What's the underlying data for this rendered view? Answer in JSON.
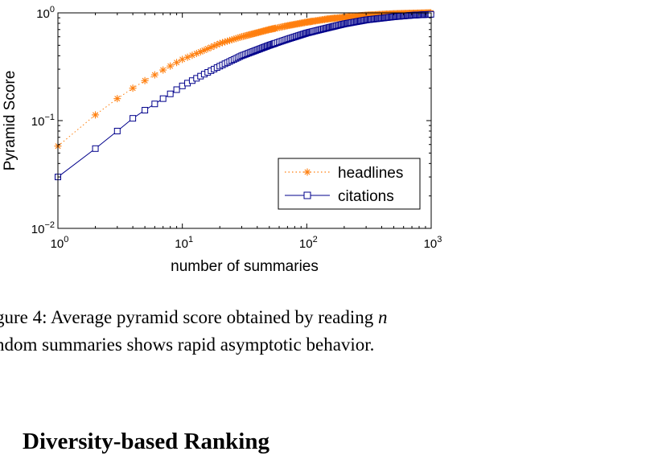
{
  "chart_data": {
    "type": "scatter",
    "xlabel": "number of summaries",
    "ylabel": "Pyramid Score",
    "xscale": "log",
    "yscale": "log",
    "xlim": [
      1,
      1000
    ],
    "ylim": [
      0.01,
      1
    ],
    "x_ticks": [
      {
        "base": "10",
        "exp": "0"
      },
      {
        "base": "10",
        "exp": "1"
      },
      {
        "base": "10",
        "exp": "2"
      },
      {
        "base": "10",
        "exp": "3"
      }
    ],
    "y_ticks": [
      {
        "base": "10",
        "exp": "−2"
      },
      {
        "base": "10",
        "exp": "−1"
      },
      {
        "base": "10",
        "exp": "0"
      }
    ],
    "legend_position": "lower-right",
    "series": [
      {
        "name": "headlines",
        "color": "#ff7f0e",
        "marker": "asterisk",
        "line_style": "dotted",
        "points": [
          [
            1,
            0.058
          ],
          [
            2,
            0.113
          ],
          [
            3,
            0.16
          ],
          [
            4,
            0.2
          ],
          [
            5,
            0.235
          ],
          [
            7,
            0.295
          ],
          [
            10,
            0.37
          ],
          [
            15,
            0.45
          ],
          [
            20,
            0.52
          ],
          [
            30,
            0.6
          ],
          [
            50,
            0.7
          ],
          [
            70,
            0.76
          ],
          [
            100,
            0.82
          ],
          [
            150,
            0.88
          ],
          [
            200,
            0.91
          ],
          [
            300,
            0.95
          ],
          [
            500,
            0.98
          ],
          [
            700,
            0.99
          ],
          [
            1000,
            1.0
          ]
        ]
      },
      {
        "name": "citations",
        "color": "#00008b",
        "marker": "square",
        "line_style": "solid",
        "points": [
          [
            1,
            0.03
          ],
          [
            2,
            0.055
          ],
          [
            3,
            0.08
          ],
          [
            4,
            0.105
          ],
          [
            5,
            0.125
          ],
          [
            7,
            0.16
          ],
          [
            10,
            0.21
          ],
          [
            15,
            0.27
          ],
          [
            20,
            0.32
          ],
          [
            30,
            0.4
          ],
          [
            50,
            0.5
          ],
          [
            70,
            0.57
          ],
          [
            100,
            0.65
          ],
          [
            150,
            0.73
          ],
          [
            200,
            0.79
          ],
          [
            300,
            0.86
          ],
          [
            500,
            0.92
          ],
          [
            700,
            0.95
          ],
          [
            1000,
            0.97
          ]
        ]
      }
    ]
  },
  "caption": {
    "line1": "gure 4: Average pyramid score obtained by reading ",
    "variable": "n",
    "line2": "ndom summaries shows rapid asymptotic behavior."
  },
  "section_heading": "Diversity-based Ranking"
}
